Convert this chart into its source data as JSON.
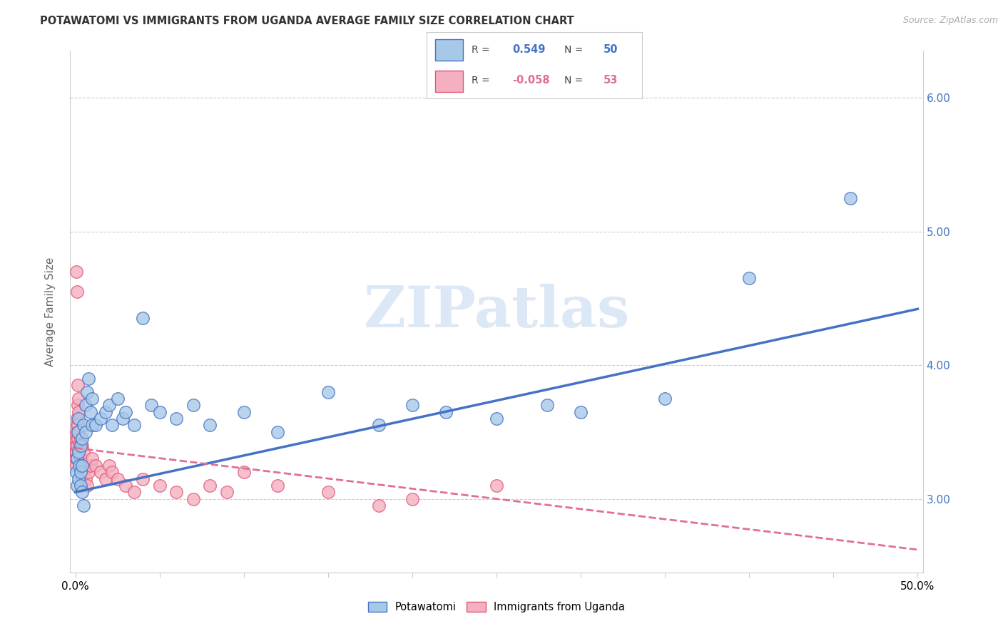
{
  "title": "POTAWATOMI VS IMMIGRANTS FROM UGANDA AVERAGE FAMILY SIZE CORRELATION CHART",
  "source": "Source: ZipAtlas.com",
  "ylabel": "Average Family Size",
  "r_potawatomi": 0.549,
  "n_potawatomi": 50,
  "r_uganda": -0.058,
  "n_uganda": 53,
  "color_potawatomi_fill": "#a8c8e8",
  "color_potawatomi_edge": "#4472c4",
  "color_uganda_fill": "#f4b0c0",
  "color_uganda_edge": "#e05878",
  "color_line_potawatomi": "#4472c4",
  "color_line_uganda": "#e07090",
  "color_grid": "#cccccc",
  "watermark": "ZIPatlas",
  "watermark_color": "#dce8f5",
  "background_color": "#ffffff",
  "ylim": [
    2.45,
    6.35
  ],
  "yticks": [
    3.0,
    4.0,
    5.0,
    6.0
  ],
  "xlim": [
    -0.003,
    0.503
  ],
  "xticks": [
    0.0,
    0.05,
    0.1,
    0.15,
    0.2,
    0.25,
    0.3,
    0.35,
    0.4,
    0.45,
    0.5
  ],
  "pot_line_x0": 0.0,
  "pot_line_y0": 3.05,
  "pot_line_x1": 0.5,
  "pot_line_y1": 4.42,
  "uga_line_x0": 0.0,
  "uga_line_y0": 3.38,
  "uga_line_x1": 0.5,
  "uga_line_y1": 2.62,
  "potawatomi_x": [
    0.0005,
    0.001,
    0.001,
    0.0015,
    0.002,
    0.002,
    0.002,
    0.0025,
    0.003,
    0.003,
    0.003,
    0.004,
    0.004,
    0.004,
    0.005,
    0.005,
    0.006,
    0.006,
    0.007,
    0.008,
    0.009,
    0.01,
    0.01,
    0.012,
    0.015,
    0.018,
    0.02,
    0.022,
    0.025,
    0.028,
    0.03,
    0.035,
    0.04,
    0.045,
    0.05,
    0.06,
    0.07,
    0.08,
    0.1,
    0.12,
    0.15,
    0.18,
    0.2,
    0.22,
    0.25,
    0.28,
    0.3,
    0.35,
    0.4,
    0.46
  ],
  "potawatomi_y": [
    3.2,
    3.3,
    3.1,
    3.5,
    3.6,
    3.35,
    3.15,
    3.25,
    3.4,
    3.2,
    3.1,
    3.45,
    3.25,
    3.05,
    3.55,
    2.95,
    3.7,
    3.5,
    3.8,
    3.9,
    3.65,
    3.75,
    3.55,
    3.55,
    3.6,
    3.65,
    3.7,
    3.55,
    3.75,
    3.6,
    3.65,
    3.55,
    4.35,
    3.7,
    3.65,
    3.6,
    3.7,
    3.55,
    3.65,
    3.5,
    3.8,
    3.55,
    3.7,
    3.65,
    3.6,
    3.7,
    3.65,
    3.75,
    4.65,
    5.25
  ],
  "uganda_x": [
    0.0002,
    0.0003,
    0.0004,
    0.0005,
    0.0006,
    0.0007,
    0.0008,
    0.001,
    0.001,
    0.001,
    0.0012,
    0.0014,
    0.0015,
    0.0016,
    0.002,
    0.002,
    0.002,
    0.0022,
    0.0025,
    0.003,
    0.003,
    0.004,
    0.004,
    0.005,
    0.005,
    0.006,
    0.007,
    0.008,
    0.009,
    0.01,
    0.012,
    0.015,
    0.018,
    0.02,
    0.022,
    0.025,
    0.03,
    0.035,
    0.04,
    0.05,
    0.06,
    0.07,
    0.08,
    0.09,
    0.1,
    0.12,
    0.15,
    0.18,
    0.2,
    0.25,
    0.0008,
    0.001,
    0.0015
  ],
  "uganda_y": [
    3.35,
    3.4,
    3.3,
    3.25,
    3.45,
    3.35,
    3.5,
    3.4,
    3.3,
    3.55,
    3.6,
    3.45,
    3.7,
    3.55,
    3.75,
    3.65,
    3.5,
    3.4,
    3.35,
    3.45,
    3.3,
    3.25,
    3.4,
    3.35,
    3.2,
    3.15,
    3.1,
    3.2,
    3.25,
    3.3,
    3.25,
    3.2,
    3.15,
    3.25,
    3.2,
    3.15,
    3.1,
    3.05,
    3.15,
    3.1,
    3.05,
    3.0,
    3.1,
    3.05,
    3.2,
    3.1,
    3.05,
    2.95,
    3.0,
    3.1,
    4.7,
    4.55,
    3.85
  ]
}
